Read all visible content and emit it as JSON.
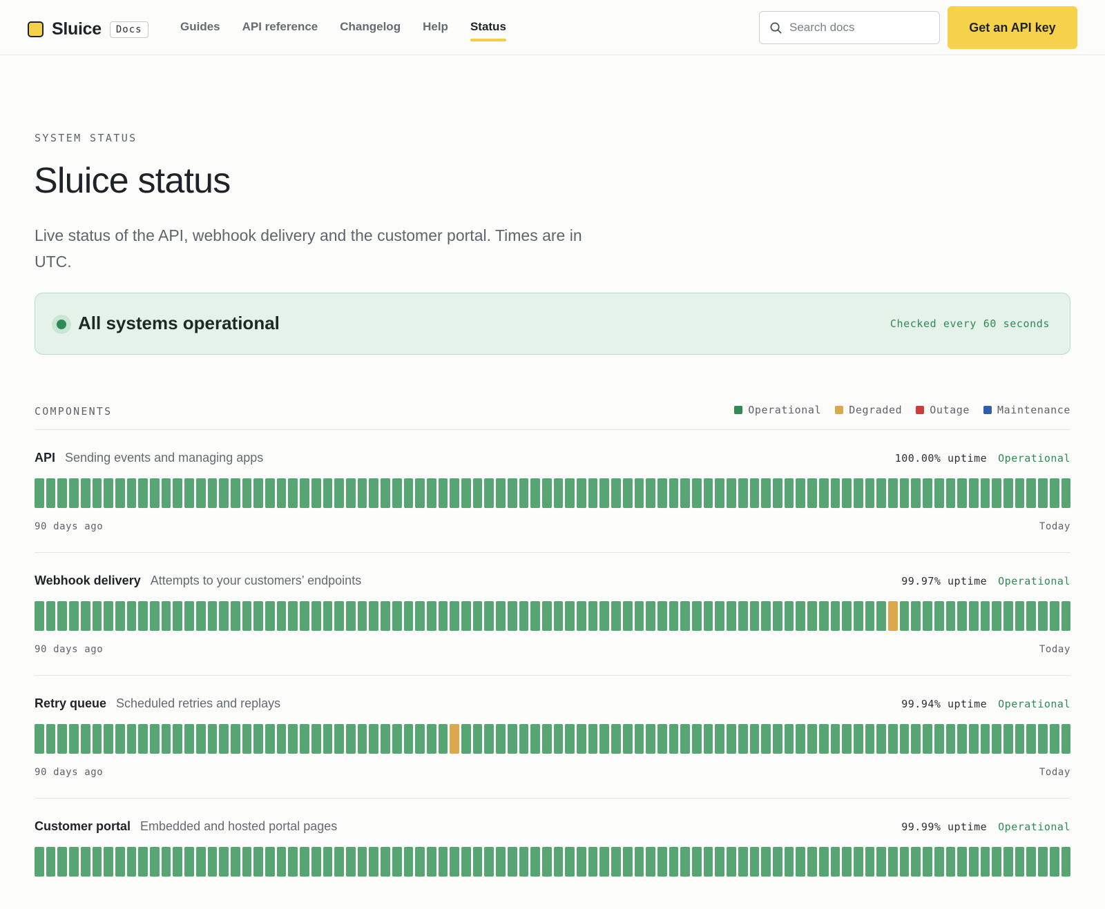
{
  "header": {
    "brand": "Sluice",
    "badge": "Docs",
    "nav": [
      "Guides",
      "API reference",
      "Changelog",
      "Help",
      "Status"
    ],
    "active_nav": "Status",
    "search_placeholder": "Search docs",
    "cta_label": "Get an API key"
  },
  "hero": {
    "eyebrow": "SYSTEM STATUS",
    "title": "Sluice status",
    "lead": "Live status of the API, webhook delivery and the customer portal. Times are in UTC."
  },
  "banner": {
    "title": "All systems operational",
    "meta": "Checked every 60 seconds"
  },
  "components_section": {
    "label": "COMPONENTS",
    "legend": [
      {
        "label": "Operational",
        "color": "#2f8a56"
      },
      {
        "label": "Degraded",
        "color": "#dba94c"
      },
      {
        "label": "Outage",
        "color": "#c83e3a"
      },
      {
        "label": "Maintenance",
        "color": "#2f5fa8"
      }
    ],
    "axis_start": "90 days ago",
    "axis_end": "Today"
  },
  "components": [
    {
      "name": "API",
      "description": "Sending events and managing apps",
      "uptime": "100.00% uptime",
      "state": "Operational",
      "days": 90,
      "degraded_days": []
    },
    {
      "name": "Webhook delivery",
      "description": "Attempts to your customers’ endpoints",
      "uptime": "99.97% uptime",
      "state": "Operational",
      "days": 90,
      "degraded_days": [
        74
      ]
    },
    {
      "name": "Retry queue",
      "description": "Scheduled retries and replays",
      "uptime": "99.94% uptime",
      "state": "Operational",
      "days": 90,
      "degraded_days": [
        36
      ]
    },
    {
      "name": "Customer portal",
      "description": "Embedded and hosted portal pages",
      "uptime": "99.99% uptime",
      "state": "Operational",
      "days": 90,
      "degraded_days": []
    }
  ]
}
